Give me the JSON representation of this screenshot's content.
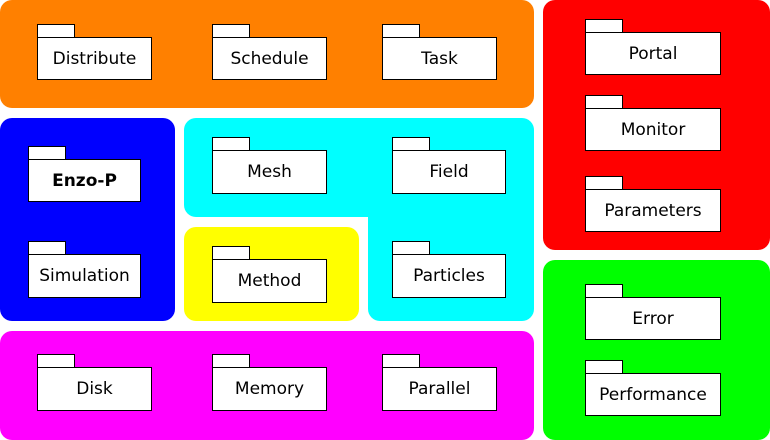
{
  "colors": {
    "orange": "#ff8000",
    "red": "#ff0000",
    "blue": "#0000ff",
    "cyan": "#00ffff",
    "yellow": "#ffff00",
    "magenta": "#ff00ff",
    "green": "#00ff00"
  },
  "packages": {
    "distribute": "Distribute",
    "schedule": "Schedule",
    "task": "Task",
    "portal": "Portal",
    "monitor": "Monitor",
    "parameters": "Parameters",
    "enzo_p": "Enzo-P",
    "simulation": "Simulation",
    "mesh": "Mesh",
    "field": "Field",
    "method": "Method",
    "particles": "Particles",
    "error": "Error",
    "performance": "Performance",
    "disk": "Disk",
    "memory": "Memory",
    "parallel": "Parallel"
  }
}
